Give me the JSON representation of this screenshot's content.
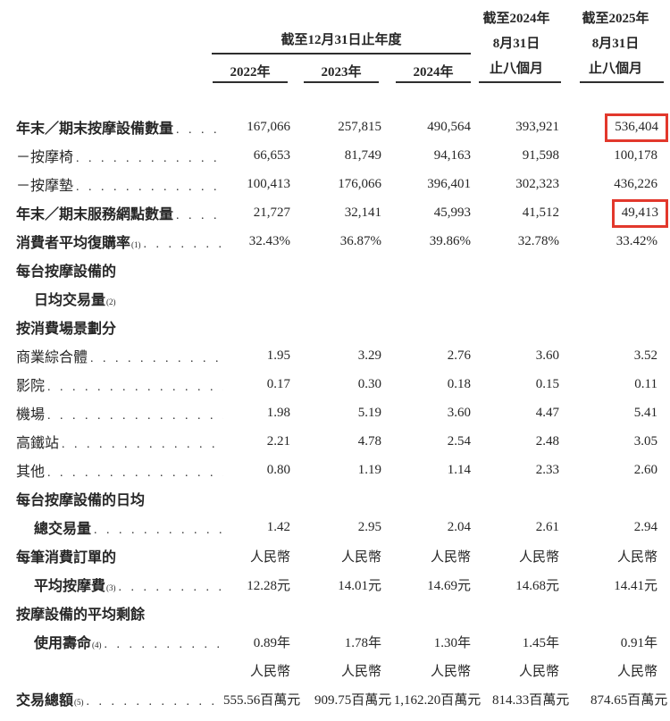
{
  "page": {
    "background": "#ffffff",
    "text_color": "#262626",
    "highlight_color": "#e2382c"
  },
  "table": {
    "column_group_title": "截至12月31日止年度",
    "year_columns": [
      "2022年",
      "2023年",
      "2024年"
    ],
    "period_columns": [
      {
        "line1": "截至2024年",
        "line2": "8月31日",
        "line3": "止八個月"
      },
      {
        "line1": "截至2025年",
        "line2": "8月31日",
        "line3": "止八個月"
      }
    ],
    "rows": [
      {
        "label": "年末／期末按摩設備數量",
        "bold": true,
        "dots": true,
        "values": [
          "167,066",
          "257,815",
          "490,564",
          "393,921",
          "536,404"
        ],
        "highlight_col": 4
      },
      {
        "label": "－按摩椅",
        "bold": false,
        "dots": true,
        "values": [
          "66,653",
          "81,749",
          "94,163",
          "91,598",
          "100,178"
        ]
      },
      {
        "label": "－按摩墊",
        "bold": false,
        "dots": true,
        "values": [
          "100,413",
          "176,066",
          "396,401",
          "302,323",
          "436,226"
        ]
      },
      {
        "label": "年末／期末服務網點數量",
        "bold": true,
        "dots": true,
        "values": [
          "21,727",
          "32,141",
          "45,993",
          "41,512",
          "49,413"
        ],
        "highlight_col": 4
      },
      {
        "label": "消費者平均復購率",
        "sup": "(1)",
        "bold": true,
        "dots": true,
        "values": [
          "32.43%",
          "36.87%",
          "39.86%",
          "32.78%",
          "33.42%"
        ]
      },
      {
        "label": "每台按摩設備的",
        "bold": true
      },
      {
        "label": "日均交易量",
        "sup": "(2)",
        "bold": true,
        "indent": true
      },
      {
        "label": "按消費場景劃分",
        "bold": true
      },
      {
        "label": "商業綜合體",
        "dots": true,
        "values": [
          "1.95",
          "3.29",
          "2.76",
          "3.60",
          "3.52"
        ]
      },
      {
        "label": "影院",
        "dots": true,
        "values": [
          "0.17",
          "0.30",
          "0.18",
          "0.15",
          "0.11"
        ]
      },
      {
        "label": "機場",
        "dots": true,
        "values": [
          "1.98",
          "5.19",
          "3.60",
          "4.47",
          "5.41"
        ]
      },
      {
        "label": "高鐵站",
        "dots": true,
        "values": [
          "2.21",
          "4.78",
          "2.54",
          "2.48",
          "3.05"
        ]
      },
      {
        "label": "其他",
        "dots": true,
        "values": [
          "0.80",
          "1.19",
          "1.14",
          "2.33",
          "2.60"
        ]
      },
      {
        "label": "每台按摩設備的日均",
        "bold": true
      },
      {
        "label": "總交易量",
        "bold": true,
        "indent": true,
        "dots": true,
        "values": [
          "1.42",
          "2.95",
          "2.04",
          "2.61",
          "2.94"
        ]
      },
      {
        "label": "每筆消費訂單的",
        "bold": true,
        "values": [
          "人民幣",
          "人民幣",
          "人民幣",
          "人民幣",
          "人民幣"
        ]
      },
      {
        "label": "平均按摩費",
        "sup": "(3)",
        "bold": true,
        "indent": true,
        "dots": true,
        "values": [
          "12.28元",
          "14.01元",
          "14.69元",
          "14.68元",
          "14.41元"
        ]
      },
      {
        "label": "按摩設備的平均剩餘",
        "bold": true
      },
      {
        "label": "使用壽命",
        "sup": "(4)",
        "bold": true,
        "indent": true,
        "dots": true,
        "values": [
          "0.89年",
          "1.78年",
          "1.30年",
          "1.45年",
          "0.91年"
        ]
      },
      {
        "label": "",
        "values": [
          "人民幣",
          "人民幣",
          "人民幣",
          "人民幣",
          "人民幣"
        ]
      },
      {
        "label": "交易總額",
        "sup": "(5)",
        "bold": true,
        "dots": true,
        "values": [
          "555.56百萬元",
          "909.75百萬元",
          "1,162.20百萬元",
          "814.33百萬元",
          "874.65百萬元"
        ]
      }
    ]
  }
}
